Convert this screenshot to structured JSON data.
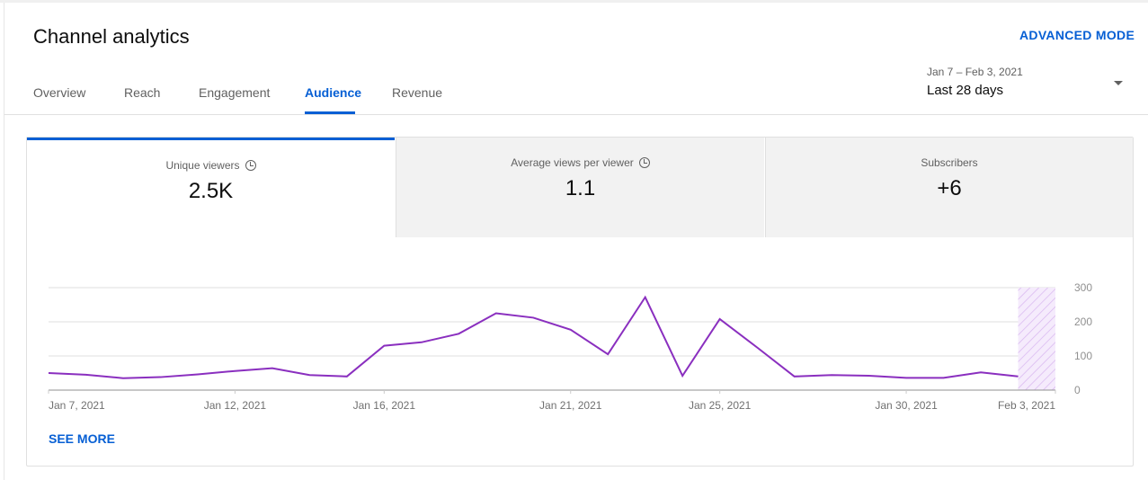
{
  "header": {
    "title": "Channel analytics",
    "advanced_mode": "ADVANCED MODE"
  },
  "tabs": [
    {
      "label": "Overview"
    },
    {
      "label": "Reach"
    },
    {
      "label": "Engagement"
    },
    {
      "label": "Audience",
      "active": true
    },
    {
      "label": "Revenue"
    }
  ],
  "date_picker": {
    "range": "Jan 7 – Feb 3, 2021",
    "selected": "Last 28 days"
  },
  "metrics": [
    {
      "label": "Unique viewers",
      "value": "2.5K",
      "info_icon": "clock-icon",
      "selected": true
    },
    {
      "label": "Average views per viewer",
      "value": "1.1",
      "info_icon": "clock-icon"
    },
    {
      "label": "Subscribers",
      "value": "+6"
    }
  ],
  "see_more": "SEE MORE",
  "colors": {
    "accent": "#065fd4",
    "line": "#8a2fbf",
    "partial_hatch": "#d9b8f0"
  },
  "chart_data": {
    "type": "line",
    "x": [
      "Jan 7",
      "Jan 8",
      "Jan 9",
      "Jan 10",
      "Jan 11",
      "Jan 12",
      "Jan 13",
      "Jan 14",
      "Jan 15",
      "Jan 16",
      "Jan 17",
      "Jan 18",
      "Jan 19",
      "Jan 20",
      "Jan 21",
      "Jan 22",
      "Jan 23",
      "Jan 24",
      "Jan 25",
      "Jan 26",
      "Jan 27",
      "Jan 28",
      "Jan 29",
      "Jan 30",
      "Jan 31",
      "Feb 1",
      "Feb 2"
    ],
    "values": [
      50,
      45,
      35,
      38,
      46,
      56,
      64,
      44,
      40,
      130,
      140,
      165,
      225,
      212,
      177,
      105,
      272,
      42,
      208,
      125,
      40,
      44,
      42,
      36,
      36,
      52,
      40
    ],
    "x_tick_labels": [
      "Jan 7, 2021",
      "Jan 12, 2021",
      "Jan 16, 2021",
      "Jan 21, 2021",
      "Jan 25, 2021",
      "Jan 30, 2021",
      "Feb 3, 2021"
    ],
    "x_tick_day_index": [
      0,
      5,
      9,
      14,
      18,
      23,
      27
    ],
    "y_ticks": [
      "0",
      "100",
      "200",
      "300"
    ],
    "ylim": [
      0,
      300
    ],
    "y_axis_position": "right",
    "partial_period": "Feb 2 – Feb 3",
    "grid": true
  }
}
